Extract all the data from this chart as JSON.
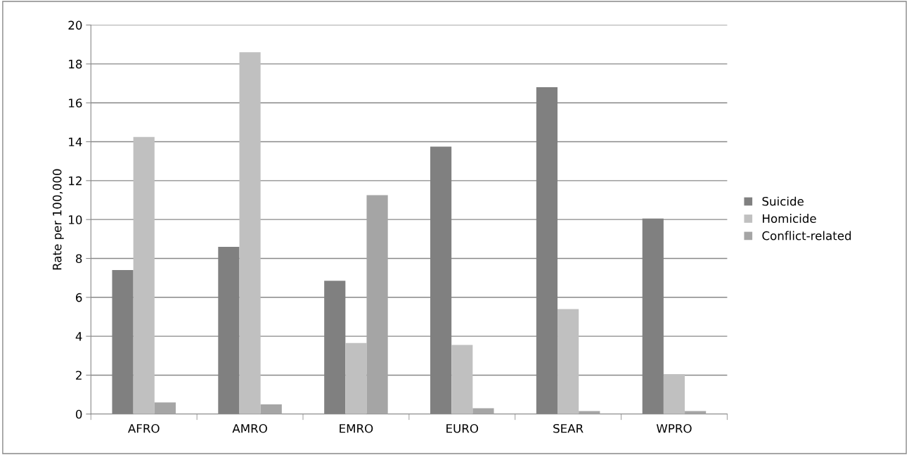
{
  "chart_data": {
    "type": "bar",
    "ylabel": "Rate per 100,000",
    "categories": [
      "AFRO",
      "AMRO",
      "EMRO",
      "EURO",
      "SEAR",
      "WPRO"
    ],
    "series": [
      {
        "name": "Suicide",
        "color": "#808080",
        "values": [
          7.4,
          8.6,
          6.85,
          13.75,
          16.8,
          10.05
        ]
      },
      {
        "name": "Homicide",
        "color": "#c0c0c0",
        "values": [
          14.25,
          18.6,
          3.65,
          3.55,
          5.4,
          2.05
        ]
      },
      {
        "name": "Conflict-related",
        "color": "#a5a5a5",
        "values": [
          0.6,
          0.5,
          11.25,
          0.3,
          0.15,
          0.15
        ]
      }
    ],
    "ylim": [
      0,
      20
    ],
    "yticks": [
      0,
      2,
      4,
      6,
      8,
      10,
      12,
      14,
      16,
      18,
      20
    ],
    "grid": "y",
    "legend": "right"
  }
}
